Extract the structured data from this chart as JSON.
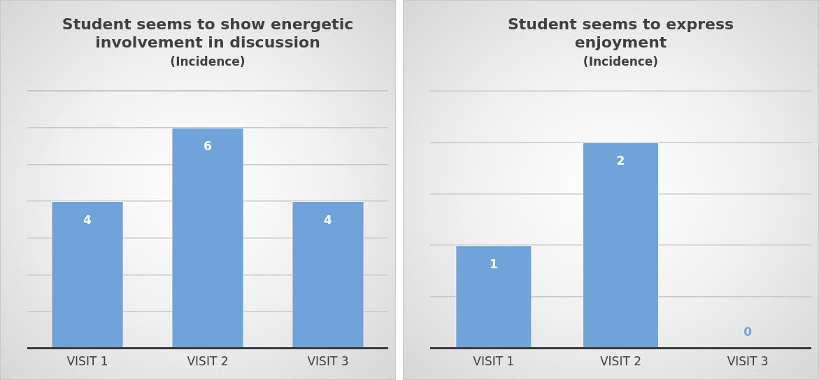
{
  "chart_data": [
    {
      "type": "bar",
      "title": "Student seems to show energetic involvement in discussion",
      "subtitle": "(Incidence)",
      "categories": [
        "VISIT 1",
        "VISIT 2",
        "VISIT 3"
      ],
      "values": [
        4,
        6,
        4
      ],
      "color": "#6fa3d9",
      "ylim": [
        0,
        7
      ],
      "yticks": [
        {
          "value": 0,
          "label": null
        },
        {
          "value": 1,
          "label": null
        },
        {
          "value": 2,
          "label": null
        },
        {
          "value": 3,
          "label": null
        },
        {
          "value": 4,
          "label": null
        },
        {
          "value": 5,
          "label": null
        },
        {
          "value": 6,
          "label": null
        },
        {
          "value": 7,
          "label": null
        }
      ],
      "grid": "y",
      "tick_labels": "x",
      "data_labels": true
    },
    {
      "type": "bar",
      "title": "Student seems to express enjoyment",
      "subtitle": "(Incidence)",
      "categories": [
        "VISIT 1",
        "VISIT 2",
        "VISIT 3"
      ],
      "values": [
        1,
        2,
        0
      ],
      "color": "#6fa3d9",
      "ylim": [
        0,
        2.5
      ],
      "yticks": [
        {
          "value": 0,
          "label": null
        },
        {
          "value": 0.5,
          "label": null
        },
        {
          "value": 1,
          "label": null
        },
        {
          "value": 1.5,
          "label": null
        },
        {
          "value": 2,
          "label": null
        }
      ],
      "grid": "y",
      "tick_labels": "x",
      "data_labels": true
    }
  ]
}
